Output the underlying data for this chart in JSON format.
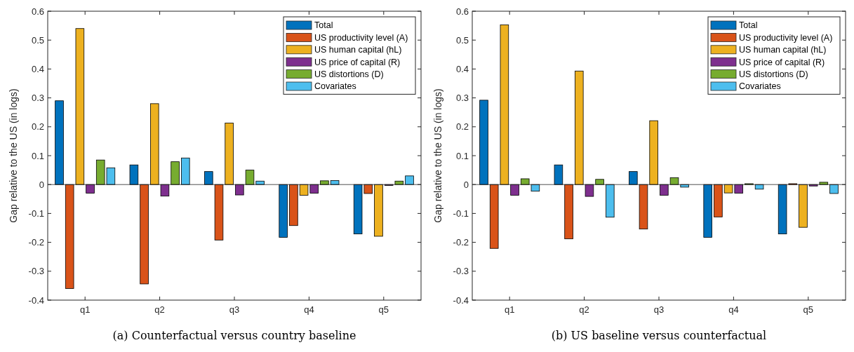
{
  "chart_data": [
    {
      "type": "bar",
      "title": "(a) Counterfactual versus country baseline",
      "ylabel": "Gap relative to the US (in logs)",
      "categories": [
        "q1",
        "q2",
        "q3",
        "q4",
        "q5"
      ],
      "ylim": [
        -0.4,
        0.6
      ],
      "yticks": [
        -0.4,
        -0.3,
        -0.2,
        -0.1,
        0,
        0.1,
        0.2,
        0.3,
        0.4,
        0.5,
        0.6
      ],
      "legend": "top right",
      "series": [
        {
          "name": "Total",
          "color": "#0072bd",
          "values": [
            0.29,
            0.068,
            0.045,
            -0.183,
            -0.171
          ]
        },
        {
          "name": "US productivity level (A)",
          "color": "#d95319",
          "values": [
            -0.36,
            -0.344,
            -0.192,
            -0.142,
            -0.031
          ]
        },
        {
          "name": "US human capital (hL)",
          "color": "#edb120",
          "values": [
            0.54,
            0.28,
            0.213,
            -0.037,
            -0.179
          ]
        },
        {
          "name": "US price of capital (R)",
          "color": "#7e2f8e",
          "values": [
            -0.03,
            -0.04,
            -0.036,
            -0.03,
            -0.003
          ]
        },
        {
          "name": "US distortions (D)",
          "color": "#77ac30",
          "values": [
            0.085,
            0.079,
            0.05,
            0.013,
            0.012
          ]
        },
        {
          "name": "Covariates",
          "color": "#4dbeee",
          "values": [
            0.058,
            0.092,
            0.012,
            0.014,
            0.03
          ]
        }
      ]
    },
    {
      "type": "bar",
      "title": "(b) US baseline versus counterfactual",
      "ylabel": "Gap relative to the US (in logs)",
      "categories": [
        "q1",
        "q2",
        "q3",
        "q4",
        "q5"
      ],
      "ylim": [
        -0.4,
        0.6
      ],
      "yticks": [
        -0.4,
        -0.3,
        -0.2,
        -0.1,
        0,
        0.1,
        0.2,
        0.3,
        0.4,
        0.5,
        0.6
      ],
      "legend": "top right",
      "series": [
        {
          "name": "Total",
          "color": "#0072bd",
          "values": [
            0.292,
            0.068,
            0.045,
            -0.183,
            -0.171
          ]
        },
        {
          "name": "US productivity level (A)",
          "color": "#d95319",
          "values": [
            -0.221,
            -0.188,
            -0.154,
            -0.112,
            0.003
          ]
        },
        {
          "name": "US human capital (hL)",
          "color": "#edb120",
          "values": [
            0.553,
            0.393,
            0.221,
            -0.029,
            -0.148
          ]
        },
        {
          "name": "US price of capital (R)",
          "color": "#7e2f8e",
          "values": [
            -0.037,
            -0.041,
            -0.037,
            -0.03,
            -0.005
          ]
        },
        {
          "name": "US distortions (D)",
          "color": "#77ac30",
          "values": [
            0.02,
            0.018,
            0.024,
            0.003,
            0.008
          ]
        },
        {
          "name": "Covariates",
          "color": "#4dbeee",
          "values": [
            -0.023,
            -0.113,
            -0.009,
            -0.016,
            -0.031
          ]
        }
      ]
    }
  ]
}
